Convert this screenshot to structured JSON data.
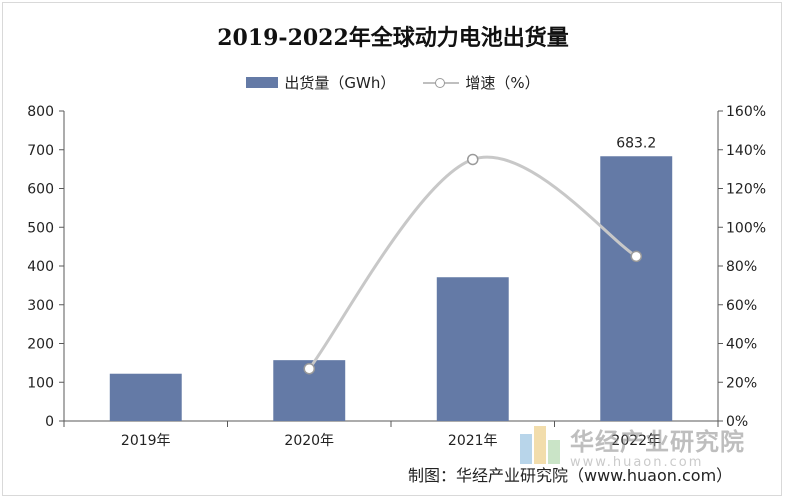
{
  "chart_data": {
    "type": "bar",
    "title": "2019-2022年全球动力电池出货量",
    "categories": [
      "2019年",
      "2020年",
      "2021年",
      "2022年"
    ],
    "series": [
      {
        "name": "出货量（GWh）",
        "type": "bar",
        "axis": "left",
        "values": [
          122,
          157,
          371,
          683.2
        ],
        "data_labels": [
          "",
          "",
          "",
          "683.2"
        ]
      },
      {
        "name": "增速（%）",
        "type": "line",
        "axis": "right",
        "values": [
          null,
          27,
          135,
          85
        ]
      }
    ],
    "y_left": {
      "min": 0,
      "max": 800,
      "step": 100,
      "ticks": [
        "0",
        "100",
        "200",
        "300",
        "400",
        "500",
        "600",
        "700",
        "800"
      ]
    },
    "y_right": {
      "min": 0,
      "max": 160,
      "step": 20,
      "ticks": [
        "0%",
        "20%",
        "40%",
        "60%",
        "80%",
        "100%",
        "120%",
        "140%",
        "160%"
      ]
    },
    "legend_position": "top-center",
    "grid": false,
    "colors": {
      "bar": "#647aa6",
      "line": "#c8c8c8",
      "marker_stroke": "#9a9a9a"
    }
  },
  "watermark": {
    "name": "华经产业研究院",
    "url": "www.huaon.com"
  },
  "source": "制图：华经产业研究院（www.huaon.com）"
}
